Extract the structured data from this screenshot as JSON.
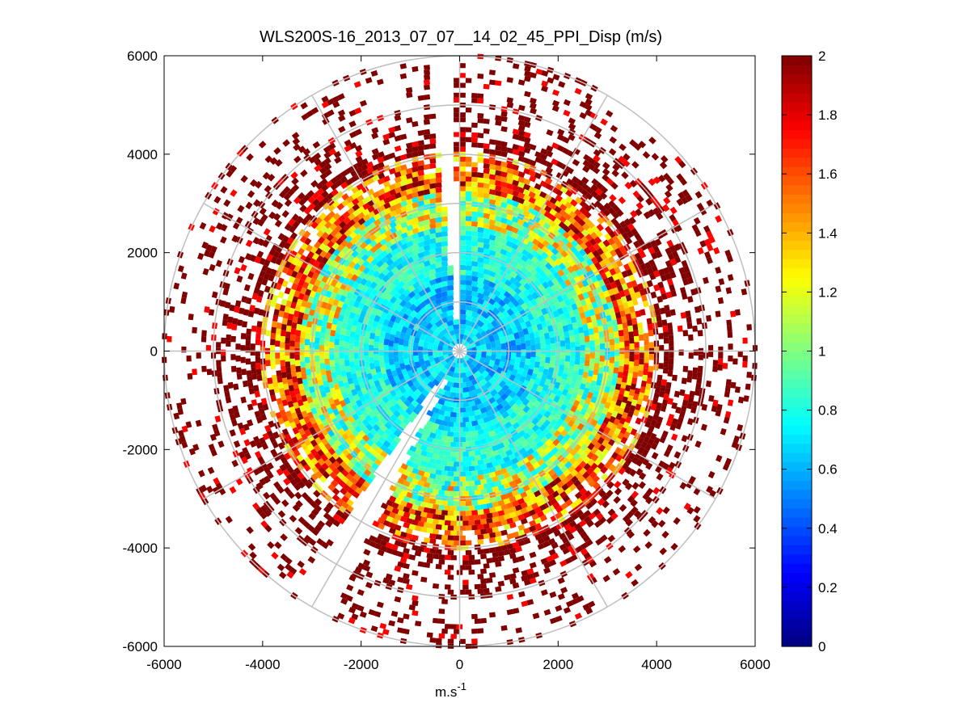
{
  "chart_data": {
    "type": "heatmap",
    "subtype": "polar-ppi-scan",
    "title": "WLS200S-16_2013_07_07__14_02_45_PPI_Disp (m/s)",
    "xlabel": "m.s",
    "xlabel_superscript": "-1",
    "ylabel": "",
    "xlim": [
      -6000,
      6000
    ],
    "ylim": [
      -6000,
      6000
    ],
    "x_ticks": [
      "-6000",
      "-4000",
      "-2000",
      "0",
      "2000",
      "4000",
      "6000"
    ],
    "y_ticks": [
      "6000",
      "4000",
      "2000",
      "0",
      "-2000",
      "-4000",
      "-6000"
    ],
    "range_rings": [
      1000,
      2000,
      3000,
      4000,
      5000,
      6000
    ],
    "spokes_deg": [
      0,
      30,
      60,
      90,
      120,
      150,
      180,
      210,
      240,
      270,
      300,
      330
    ],
    "colorbar": {
      "colormap": "jet",
      "range": [
        0,
        2
      ],
      "tick_labels": [
        "2",
        "1.8",
        "1.6",
        "1.4",
        "1.2",
        "1",
        "0.8",
        "0.6",
        "0.4",
        "0.2",
        "0"
      ]
    },
    "gaps_deg": [
      [
        354,
        359
      ],
      [
        206,
        214
      ]
    ],
    "value_profile": [
      {
        "range_to": 1500,
        "typical_value": 0.65
      },
      {
        "range_to": 2500,
        "typical_value": 0.8
      },
      {
        "range_to": 3200,
        "typical_value": 1.1
      },
      {
        "range_to": 4000,
        "typical_value": 1.6
      },
      {
        "range_to": 6000,
        "typical_value": 2.0
      }
    ]
  }
}
